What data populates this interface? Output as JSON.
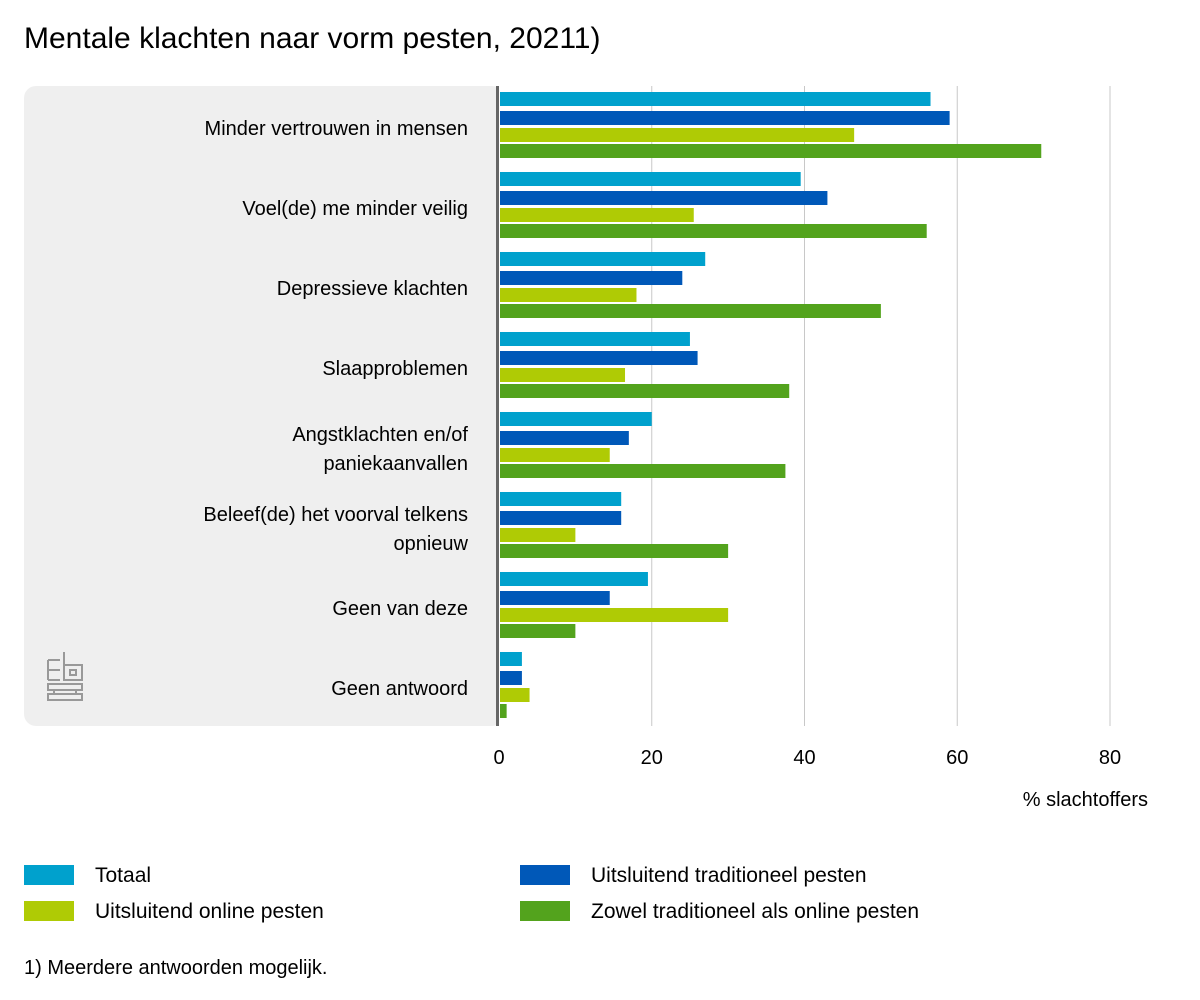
{
  "chart_data": {
    "type": "bar",
    "orientation": "horizontal",
    "title": "Mentale klachten naar vorm pesten, 20211)",
    "xlabel": "% slachtoffers",
    "xlim": [
      0,
      80
    ],
    "xticks": [
      0,
      20,
      40,
      60,
      80
    ],
    "grid": true,
    "legend_position": "bottom",
    "footnote": "1) Meerdere antwoorden mogelijk.",
    "categories": [
      "Minder vertrouwen in mensen",
      "Voel(de) me minder veilig",
      "Depressieve klachten",
      "Slaapproblemen",
      "Angstklachten en/of paniekaanvallen",
      "Beleef(de) het voorval telkens opnieuw",
      "Geen van deze",
      "Geen antwoord"
    ],
    "series": [
      {
        "name": "Totaal",
        "color": "#00a1cd",
        "values": [
          56.5,
          39.5,
          27,
          25,
          20,
          16,
          19.5,
          3
        ]
      },
      {
        "name": "Uitsluitend traditioneel pesten",
        "color": "#0058b8",
        "values": [
          59,
          43,
          24,
          26,
          17,
          16,
          14.5,
          3
        ]
      },
      {
        "name": "Uitsluitend online pesten",
        "color": "#afcb05",
        "values": [
          46.5,
          25.5,
          18,
          16.5,
          14.5,
          10,
          30,
          4
        ]
      },
      {
        "name": "Zowel traditioneel als online pesten",
        "color": "#53a31d",
        "values": [
          71,
          56,
          50,
          38,
          37.5,
          30,
          10,
          1
        ]
      }
    ]
  }
}
